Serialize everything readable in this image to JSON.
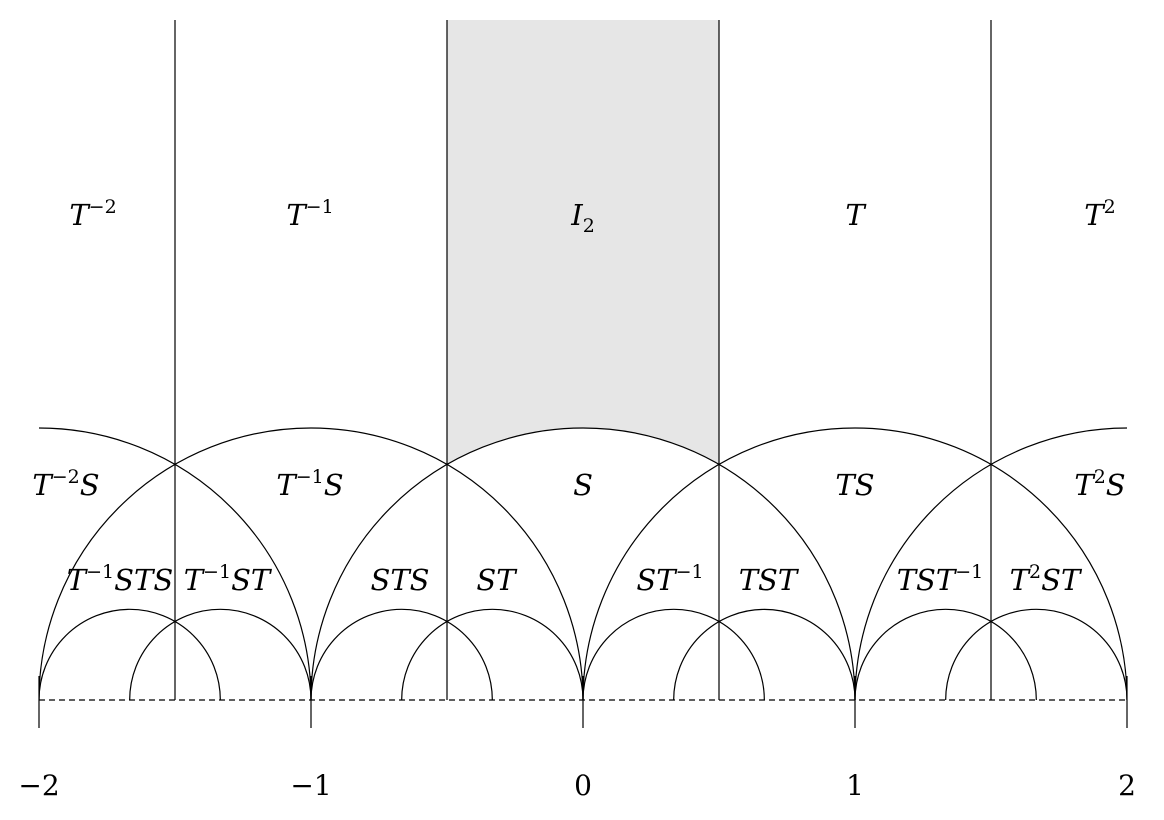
{
  "regions": [
    {
      "parts": [
        {
          "text": "T"
        },
        {
          "sup": "−2"
        }
      ]
    },
    {
      "parts": [
        {
          "text": "T"
        },
        {
          "sup": "−1"
        }
      ]
    },
    {
      "parts": [
        {
          "text": "I"
        },
        {
          "sub": "2"
        }
      ]
    },
    {
      "parts": [
        {
          "text": "T"
        }
      ]
    },
    {
      "parts": [
        {
          "text": "T"
        },
        {
          "sup": "2"
        }
      ]
    },
    {
      "parts": [
        {
          "text": "T"
        },
        {
          "sup": "−2"
        },
        {
          "text": "S"
        }
      ]
    },
    {
      "parts": [
        {
          "text": "T"
        },
        {
          "sup": "−1"
        },
        {
          "text": "S"
        }
      ]
    },
    {
      "parts": [
        {
          "text": "S"
        }
      ]
    },
    {
      "parts": [
        {
          "text": "TS"
        }
      ]
    },
    {
      "parts": [
        {
          "text": "T"
        },
        {
          "sup": "2"
        },
        {
          "text": "S"
        }
      ]
    },
    {
      "parts": [
        {
          "text": "T"
        },
        {
          "sup": "−1"
        },
        {
          "text": "STS"
        }
      ]
    },
    {
      "parts": [
        {
          "text": "T"
        },
        {
          "sup": "−1"
        },
        {
          "text": "ST"
        }
      ]
    },
    {
      "parts": [
        {
          "text": "STS"
        }
      ]
    },
    {
      "parts": [
        {
          "text": "ST"
        }
      ]
    },
    {
      "parts": [
        {
          "text": "ST"
        },
        {
          "sup": "−1"
        }
      ]
    },
    {
      "parts": [
        {
          "text": "TST"
        }
      ]
    },
    {
      "parts": [
        {
          "text": "TST"
        },
        {
          "sup": "−1"
        }
      ]
    },
    {
      "parts": [
        {
          "text": "T"
        },
        {
          "sup": "2"
        },
        {
          "text": "ST"
        }
      ]
    }
  ],
  "axis": {
    "labels": [
      "−2",
      "−1",
      "0",
      "1",
      "2"
    ]
  }
}
